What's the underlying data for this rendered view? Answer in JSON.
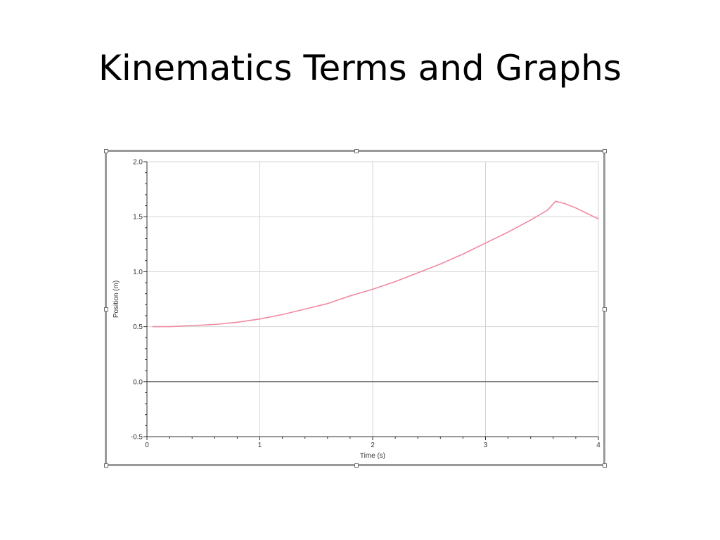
{
  "slide": {
    "title": "Kinematics Terms and Graphs"
  },
  "chart_data": {
    "type": "line",
    "xlabel": "Time (s)",
    "ylabel": "Position (m)",
    "xlim": [
      0,
      4
    ],
    "ylim": [
      -0.5,
      2.0
    ],
    "x_ticks": [
      "0",
      "1",
      "2",
      "3",
      "4"
    ],
    "y_ticks": [
      "-0.5",
      "0.0",
      "0.5",
      "1.0",
      "1.5",
      "2.0"
    ],
    "grid": true,
    "series": [
      {
        "color": "#f08aa0",
        "x": [
          0.05,
          0.2,
          0.4,
          0.6,
          0.8,
          1.0,
          1.2,
          1.4,
          1.6,
          1.8,
          2.0,
          2.2,
          2.4,
          2.6,
          2.8,
          3.0,
          3.2,
          3.4,
          3.55,
          3.62,
          3.7,
          3.8,
          3.9,
          4.0
        ],
        "y": [
          0.5,
          0.5,
          0.51,
          0.52,
          0.54,
          0.57,
          0.61,
          0.66,
          0.71,
          0.78,
          0.84,
          0.91,
          0.99,
          1.07,
          1.16,
          1.26,
          1.36,
          1.47,
          1.56,
          1.64,
          1.62,
          1.58,
          1.53,
          1.48
        ]
      }
    ]
  }
}
